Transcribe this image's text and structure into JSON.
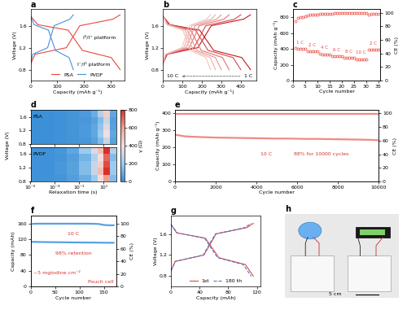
{
  "chart_data": [
    {
      "type": "line",
      "title": "a",
      "xlabel": "Capacity (mAh g⁻¹)",
      "ylabel": "Voltage (V)",
      "xlim": [
        0,
        350
      ],
      "xticks": [
        0,
        100,
        200,
        300
      ],
      "ylim": [
        0.6,
        1.9
      ],
      "yticks": [
        0.8,
        1.2,
        1.6
      ],
      "legend": "lower center",
      "series": [
        {
          "name": "PSA",
          "color": "#e8473f",
          "line_style": "solid",
          "curves": [
            {
              "x": [
                0,
                27,
                141,
                194,
                302,
                335
              ],
              "values": [
                1.78,
                1.62,
                1.52,
                1.15,
                1.02,
                0.8
              ]
            },
            {
              "x": [
                0,
                17,
                134,
                184,
                308,
                335
              ],
              "values": [
                0.9,
                1.08,
                1.2,
                1.6,
                1.72,
                1.8
              ]
            }
          ]
        },
        {
          "name": "PVDF",
          "color": "#4a90d9",
          "line_style": "solid",
          "curves": [
            {
              "x": [
                0,
                13,
                67,
                93,
                144,
                160
              ],
              "values": [
                1.78,
                1.62,
                1.52,
                1.15,
                1.02,
                0.8
              ]
            },
            {
              "x": [
                0,
                8,
                64,
                88,
                147,
                160
              ],
              "values": [
                0.9,
                1.08,
                1.2,
                1.6,
                1.72,
                1.8
              ]
            }
          ]
        }
      ],
      "annotations": [
        "I⁰/I⁺ platform",
        "I⁻/I⁰ platform"
      ]
    },
    {
      "type": "line",
      "title": "b",
      "xlabel": "Capacity (mAh g⁻¹)",
      "ylabel": "Voltage (V)",
      "xlim": [
        0,
        480
      ],
      "xticks": [
        0,
        100,
        200,
        300,
        400
      ],
      "ylim": [
        0.6,
        1.9
      ],
      "yticks": [
        0.8,
        1.2,
        1.6
      ],
      "series": [
        {
          "color": "#c8161d",
          "line_style": "solid",
          "curves": [
            {
              "x": [
                0,
                36,
                189,
                261,
                405,
                450
              ],
              "values": [
                1.78,
                1.62,
                1.52,
                1.15,
                1.02,
                0.8
              ]
            },
            {
              "x": [
                0,
                23,
                180,
                248,
                414,
                450
              ],
              "values": [
                0.9,
                1.08,
                1.2,
                1.6,
                1.72,
                1.8
              ]
            }
          ]
        },
        {
          "color": "#d6464b",
          "line_style": "solid",
          "curves": [
            {
              "x": [
                0,
                32,
                168,
                232,
                360,
                400
              ],
              "values": [
                1.78,
                1.62,
                1.52,
                1.15,
                1.02,
                0.8
              ]
            },
            {
              "x": [
                0,
                20,
                160,
                220,
                368,
                400
              ],
              "values": [
                0.9,
                1.08,
                1.2,
                1.6,
                1.72,
                1.8
              ]
            }
          ]
        },
        {
          "color": "#e07472",
          "line_style": "solid",
          "curves": [
            {
              "x": [
                0,
                27,
                143,
                197,
                306,
                340
              ],
              "values": [
                1.78,
                1.62,
                1.52,
                1.15,
                1.02,
                0.8
              ]
            },
            {
              "x": [
                0,
                17,
                136,
                187,
                313,
                340
              ],
              "values": [
                0.9,
                1.08,
                1.2,
                1.6,
                1.72,
                1.8
              ]
            }
          ]
        },
        {
          "color": "#e8948f",
          "line_style": "solid",
          "curves": [
            {
              "x": [
                0,
                24,
                126,
                174,
                270,
                300
              ],
              "values": [
                1.78,
                1.62,
                1.52,
                1.15,
                1.02,
                0.8
              ]
            },
            {
              "x": [
                0,
                15,
                120,
                165,
                276,
                300
              ],
              "values": [
                0.9,
                1.08,
                1.2,
                1.6,
                1.72,
                1.8
              ]
            }
          ]
        },
        {
          "color": "#eeaea9",
          "line_style": "solid",
          "curves": [
            {
              "x": [
                0,
                22,
                113,
                157,
                243,
                270
              ],
              "values": [
                1.78,
                1.62,
                1.52,
                1.15,
                1.02,
                0.8
              ]
            },
            {
              "x": [
                0,
                14,
                108,
                149,
                248,
                270
              ],
              "values": [
                0.9,
                1.08,
                1.2,
                1.6,
                1.72,
                1.8
              ]
            }
          ]
        },
        {
          "color": "#f3c3bf",
          "line_style": "solid",
          "curves": [
            {
              "x": [
                0,
                20,
                103,
                142,
                221,
                245
              ],
              "values": [
                1.78,
                1.62,
                1.52,
                1.15,
                1.02,
                0.8
              ]
            },
            {
              "x": [
                0,
                12,
                98,
                135,
                225,
                245
              ],
              "values": [
                0.9,
                1.08,
                1.2,
                1.6,
                1.72,
                1.8
              ]
            }
          ]
        }
      ],
      "annotations": [
        "10 C",
        "1 C"
      ]
    },
    {
      "type": "scatter",
      "title": "c",
      "xlabel": "Cycle number",
      "ylabel": "Capacity (mAh g⁻¹)",
      "y2label": "CE (%)",
      "xlim": [
        0,
        36
      ],
      "xticks": [
        0,
        5,
        10,
        15,
        20,
        25,
        30,
        35
      ],
      "ylim": [
        0,
        900
      ],
      "yticks": [
        0,
        200,
        400,
        600,
        800
      ],
      "y2lim": [
        0,
        105
      ],
      "y2ticks": [
        0,
        20,
        40,
        60,
        80,
        100
      ],
      "x": [
        1,
        2,
        3,
        4,
        5,
        6,
        7,
        8,
        9,
        10,
        11,
        12,
        13,
        14,
        15,
        16,
        17,
        18,
        19,
        20,
        21,
        22,
        23,
        24,
        25,
        26,
        27,
        28,
        29,
        30,
        31,
        32,
        33,
        34,
        35
      ],
      "series": [
        {
          "color": "#e8473f",
          "marker": "circle",
          "line_style": "none",
          "values": [
            410,
            402,
            400,
            398,
            397,
            372,
            370,
            369,
            368,
            367,
            335,
            333,
            332,
            331,
            330,
            310,
            308,
            307,
            306,
            305,
            290,
            288,
            287,
            286,
            285,
            272,
            270,
            269,
            268,
            268,
            395,
            392,
            390,
            389,
            388
          ]
        },
        {
          "color": "#e8473f",
          "marker": "circle",
          "line_style": "none",
          "axis": "y2",
          "values": [
            88,
            92,
            94,
            94,
            95,
            96,
            97,
            97,
            97,
            97,
            98,
            98,
            98,
            98,
            98,
            98,
            99,
            99,
            99,
            99,
            99,
            99,
            99,
            99,
            99,
            99,
            99,
            99,
            99,
            99,
            97,
            98,
            98,
            98,
            98
          ]
        }
      ],
      "annotations": [
        "1 C",
        "2 C",
        "4 C",
        "6 C",
        "8 C",
        "10 C",
        "2 C"
      ]
    },
    {
      "type": "heatmap",
      "title": "d",
      "xlabel": "Relaxation time (s)",
      "ylabel": "Voltage (V)",
      "log": "x",
      "xlim": [
        1e-05,
        100
      ],
      "xticks": [
        {
          "value": 1e-05,
          "label": "10⁻⁵"
        },
        {
          "value": 0.001,
          "label": "10⁻³"
        },
        {
          "value": 0.1,
          "label": "10⁻¹"
        },
        {
          "value": 10,
          "label": "10¹"
        }
      ],
      "ylim": [
        0.8,
        1.8
      ],
      "yticks": [
        0.8,
        1.2,
        1.6
      ],
      "x_edges": [
        1e-05,
        0.0001,
        0.001,
        0.01,
        0.1,
        1,
        3,
        10,
        30,
        100
      ],
      "y_edges": [
        0.8,
        1.0,
        1.2,
        1.4,
        1.6,
        1.8
      ],
      "panels": [
        {
          "name": "PSA",
          "cells": [
            [
              5,
              5,
              10,
              20,
              30,
              60,
              150,
              300,
              60
            ],
            [
              5,
              5,
              10,
              20,
              40,
              80,
              200,
              400,
              80
            ],
            [
              5,
              5,
              10,
              20,
              40,
              80,
              180,
              350,
              60
            ],
            [
              5,
              5,
              10,
              20,
              30,
              60,
              150,
              300,
              50
            ],
            [
              5,
              5,
              10,
              20,
              40,
              100,
              250,
              450,
              80
            ]
          ]
        },
        {
          "name": "PVDF",
          "cells": [
            [
              10,
              10,
              20,
              50,
              100,
              200,
              400,
              600,
              150
            ],
            [
              10,
              10,
              30,
              60,
              150,
              300,
              500,
              800,
              200
            ],
            [
              10,
              10,
              30,
              60,
              150,
              300,
              450,
              750,
              200
            ],
            [
              10,
              10,
              20,
              50,
              120,
              250,
              400,
              700,
              150
            ],
            [
              10,
              10,
              30,
              80,
              200,
              350,
              500,
              800,
              250
            ]
          ]
        }
      ],
      "colorbar": {
        "label": "γ (Ω)",
        "range": [
          0,
          800
        ],
        "ticks": [
          0,
          200,
          400,
          600,
          800
        ]
      }
    },
    {
      "type": "scatter",
      "title": "e",
      "xlabel": "Cycle number",
      "ylabel": "Capacity (mAh g⁻¹)",
      "y2label": "CE (%)",
      "xlim": [
        0,
        10000
      ],
      "xticks": [
        0,
        2000,
        4000,
        6000,
        8000,
        10000
      ],
      "ylim": [
        0,
        420
      ],
      "yticks": [
        0,
        100,
        200,
        300,
        400
      ],
      "y2lim": [
        0,
        105
      ],
      "y2ticks": [
        0,
        20,
        40,
        60,
        80,
        100
      ],
      "x": [
        1,
        500,
        1000,
        1500,
        2000,
        2500,
        3000,
        3500,
        4000,
        4500,
        5000,
        5500,
        6000,
        6500,
        7000,
        7500,
        8000,
        8500,
        9000,
        9500,
        10000
      ],
      "series": [
        {
          "color": "#f08a84",
          "line_style": "solid",
          "values": [
            275,
            265,
            262,
            260,
            258,
            257,
            256,
            255,
            254,
            253,
            252,
            252,
            251,
            250,
            250,
            249,
            248,
            247,
            246,
            245,
            242
          ]
        },
        {
          "color": "#f08a84",
          "line_style": "solid",
          "axis": "y2",
          "values": [
            99.8,
            99.8,
            99.8,
            99.8,
            99.8,
            99.8,
            99.8,
            99.8,
            99.8,
            99.8,
            99.8,
            99.8,
            99.8,
            99.8,
            99.8,
            99.8,
            99.8,
            99.8,
            99.8,
            99.8,
            99.8
          ]
        }
      ],
      "annotations": [
        "10 C",
        "88% for 10000 cycles"
      ]
    },
    {
      "type": "scatter",
      "title": "f",
      "xlabel": "Cycle number",
      "ylabel": "Capacity (mAh)",
      "y2label": "CE (%)",
      "xlim": [
        0,
        175
      ],
      "xticks": [
        0,
        50,
        100,
        150
      ],
      "ylim": [
        0,
        180
      ],
      "yticks": [
        0,
        40,
        80,
        120,
        160
      ],
      "y2lim": [
        0,
        112.5
      ],
      "y2ticks": [
        0,
        20,
        40,
        60,
        80,
        100
      ],
      "x": [
        1,
        10,
        20,
        30,
        40,
        50,
        60,
        70,
        80,
        90,
        100,
        110,
        120,
        130,
        140,
        150,
        160,
        170
      ],
      "series": [
        {
          "color": "#5aa0e0",
          "line_style": "solid",
          "values": [
            113.5,
            113.2,
            113,
            112.8,
            112.6,
            112.5,
            112.3,
            112.2,
            112,
            111.9,
            111.8,
            111.7,
            111.6,
            111.5,
            111.3,
            111.2,
            111,
            111
          ]
        },
        {
          "color": "#5aa0e0",
          "line_style": "solid",
          "axis": "y2",
          "values": [
            99,
            99.5,
            99.5,
            99.5,
            99.5,
            99.5,
            99.5,
            99.5,
            99.5,
            99.5,
            99.5,
            99.5,
            99.5,
            99.3,
            99,
            97.5,
            97,
            97
          ]
        }
      ],
      "annotations": [
        "10 C",
        "98% retention",
        "~5 mgiodine cm⁻²",
        "Pouch cell"
      ]
    },
    {
      "type": "line",
      "title": "g",
      "xlabel": "Capacity (mAh)",
      "ylabel": "Voltage (V)",
      "xlim": [
        0,
        125
      ],
      "xticks": [
        0,
        40,
        80,
        120
      ],
      "ylim": [
        0.6,
        1.95
      ],
      "yticks": [
        0.8,
        1.2,
        1.6
      ],
      "legend": "lower center",
      "series": [
        {
          "name": "1st",
          "color": "#e8473f",
          "line_style": "solid",
          "curves": [
            {
              "x": [
                0,
                8,
                48,
                67,
                104,
                115
              ],
              "values": [
                1.78,
                1.62,
                1.52,
                1.15,
                1.02,
                0.8
              ]
            },
            {
              "x": [
                0,
                6,
                46,
                63,
                106,
                115
              ],
              "values": [
                0.9,
                1.08,
                1.2,
                1.6,
                1.72,
                1.8
              ]
            }
          ]
        },
        {
          "name": "180 th",
          "color": "#4a78c8",
          "line_style": "dashed",
          "curves": [
            {
              "x": [
                0,
                9,
                47,
                65,
                101,
                112
              ],
              "values": [
                1.78,
                1.62,
                1.52,
                1.15,
                1.02,
                0.8
              ]
            },
            {
              "x": [
                0,
                6,
                45,
                62,
                103,
                112
              ],
              "values": [
                0.9,
                1.08,
                1.2,
                1.6,
                1.72,
                1.8
              ]
            }
          ]
        }
      ]
    },
    {
      "type": "photo",
      "title": "h",
      "annotations": [
        "5 cm"
      ]
    }
  ]
}
